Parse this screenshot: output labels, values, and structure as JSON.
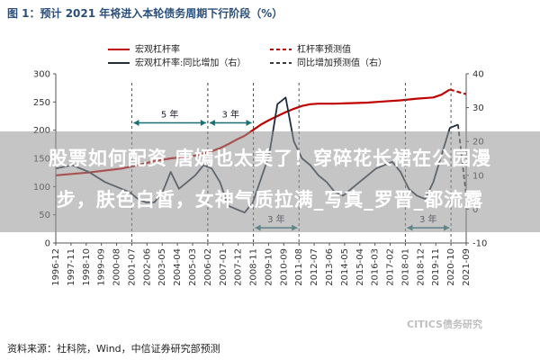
{
  "figure_title": "图 1：预计 2021 年将进入本轮债务周期下行阶段（%）",
  "source_note": "资料来源：社科院，Wind，中信证券研究部预测",
  "watermark": "CITICS债务研究",
  "overlay": {
    "line1": "股票如何配资 唐嫣也太美了！穿碎花长裙在公园漫",
    "line2": "步，肤色白皙，女神气质拉满_写真_罗晋_都流露"
  },
  "chart_data": {
    "type": "line",
    "x_ticks": [
      "1996-12",
      "1997-11",
      "1998-10",
      "1999-09",
      "2000-08",
      "2001-07",
      "2002-06",
      "2003-05",
      "2004-04",
      "2005-03",
      "2006-02",
      "2007-01",
      "2007-12",
      "2008-11",
      "2009-10",
      "2010-09",
      "2011-08",
      "2012-07",
      "2013-06",
      "2014-05",
      "2015-04",
      "2016-03",
      "2017-02",
      "2018-01",
      "2018-12",
      "2019-11",
      "2020-10",
      "2021-09"
    ],
    "left_axis": {
      "ylim": [
        0,
        300
      ],
      "ticks": [
        0,
        50,
        100,
        150,
        200,
        250,
        300
      ]
    },
    "right_axis": {
      "ylim": [
        -10,
        40
      ],
      "ticks": [
        -10,
        0,
        10,
        20,
        30,
        40
      ]
    },
    "series": [
      {
        "name": "宏观杠杆率",
        "axis": "left",
        "color": "#c00000",
        "dash": false,
        "points": [
          [
            0,
            120
          ],
          [
            4,
            125
          ],
          [
            8,
            132
          ],
          [
            10,
            138
          ],
          [
            12,
            145
          ],
          [
            14,
            150
          ],
          [
            16,
            153
          ],
          [
            17,
            155
          ],
          [
            18,
            159
          ],
          [
            19,
            163
          ],
          [
            20,
            168
          ],
          [
            21,
            175
          ],
          [
            22,
            183
          ],
          [
            23,
            190
          ],
          [
            24,
            200
          ],
          [
            25,
            210
          ],
          [
            26,
            218
          ],
          [
            27,
            225
          ],
          [
            28,
            232
          ],
          [
            29,
            238
          ],
          [
            30,
            243
          ],
          [
            31,
            246
          ],
          [
            32,
            247
          ],
          [
            34,
            247
          ],
          [
            36,
            248
          ],
          [
            38,
            249
          ],
          [
            40,
            251
          ],
          [
            42,
            253
          ],
          [
            44,
            256
          ],
          [
            46,
            258
          ],
          [
            47,
            263
          ],
          [
            48,
            272
          ]
        ]
      },
      {
        "name": "杠杆率预测值",
        "axis": "left",
        "color": "#c00000",
        "dash": true,
        "points": [
          [
            48,
            272
          ],
          [
            49,
            268
          ],
          [
            50,
            264
          ]
        ]
      },
      {
        "name": "宏观杠杆率:同比增加（右）",
        "axis": "right",
        "color": "#1f2d3d",
        "dash": false,
        "points": [
          [
            0,
            12
          ],
          [
            2,
            13
          ],
          [
            4,
            11
          ],
          [
            6,
            8
          ],
          [
            8,
            6
          ],
          [
            9,
            5
          ],
          [
            10,
            3
          ],
          [
            11,
            2
          ],
          [
            12,
            2
          ],
          [
            13,
            5
          ],
          [
            14,
            11
          ],
          [
            15,
            6
          ],
          [
            16,
            8
          ],
          [
            17,
            10
          ],
          [
            18,
            13
          ],
          [
            19,
            12
          ],
          [
            20,
            8
          ],
          [
            21,
            1
          ],
          [
            22,
            0
          ],
          [
            23,
            -1
          ],
          [
            24,
            2
          ],
          [
            25,
            9
          ],
          [
            26,
            16
          ],
          [
            27,
            31
          ],
          [
            28,
            33
          ],
          [
            29,
            20
          ],
          [
            30,
            15
          ],
          [
            31,
            13
          ],
          [
            32,
            10
          ],
          [
            33,
            8
          ],
          [
            34,
            5
          ],
          [
            35,
            4
          ],
          [
            36,
            6
          ],
          [
            37,
            8
          ],
          [
            38,
            10
          ],
          [
            39,
            12
          ],
          [
            40,
            13
          ],
          [
            41,
            14
          ],
          [
            42,
            11
          ],
          [
            43,
            6
          ],
          [
            44,
            4
          ],
          [
            45,
            3
          ],
          [
            46,
            8
          ],
          [
            47,
            16
          ],
          [
            48,
            24
          ],
          [
            49,
            25
          ]
        ]
      },
      {
        "name": "同比增加预测值（右）",
        "axis": "right",
        "color": "#3a3a3a",
        "dash": true,
        "points": [
          [
            49,
            25
          ],
          [
            50,
            4
          ]
        ]
      }
    ],
    "annotations": [
      {
        "label": "5 年",
        "from_tick": 5,
        "to_tick": 10,
        "value": 25.5,
        "axis": "right"
      },
      {
        "label": "3 年",
        "from_tick": 10,
        "to_tick": 13,
        "value": 25.5,
        "axis": "right"
      },
      {
        "label": "3 年",
        "from_tick": 13,
        "to_tick": 16,
        "value": -5.5,
        "axis": "right"
      },
      {
        "label": "3 年",
        "from_tick": 23,
        "to_tick": 26,
        "value": -5.5,
        "axis": "right"
      }
    ],
    "xlabel": "",
    "ylabel": "",
    "legend_position": "top"
  }
}
